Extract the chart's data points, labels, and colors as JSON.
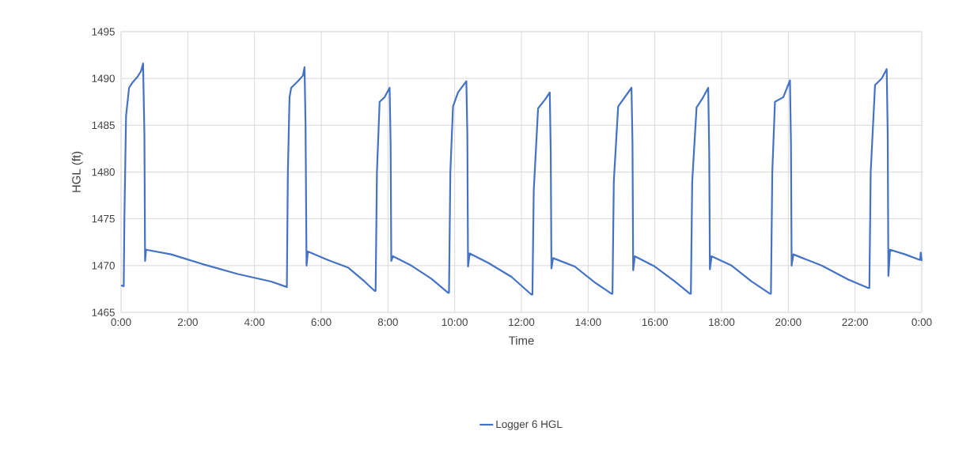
{
  "chart_data": {
    "type": "line",
    "xlabel": "Time",
    "ylabel": "HGL (ft)",
    "xlim": [
      0,
      24
    ],
    "ylim": [
      1465,
      1495
    ],
    "xticks": [
      {
        "value": 0,
        "label": "0:00"
      },
      {
        "value": 2,
        "label": "2:00"
      },
      {
        "value": 4,
        "label": "4:00"
      },
      {
        "value": 6,
        "label": "6:00"
      },
      {
        "value": 8,
        "label": "8:00"
      },
      {
        "value": 10,
        "label": "10:00"
      },
      {
        "value": 12,
        "label": "12:00"
      },
      {
        "value": 14,
        "label": "14:00"
      },
      {
        "value": 16,
        "label": "16:00"
      },
      {
        "value": 18,
        "label": "18:00"
      },
      {
        "value": 20,
        "label": "20:00"
      },
      {
        "value": 22,
        "label": "22:00"
      },
      {
        "value": 24,
        "label": "0:00"
      }
    ],
    "yticks": [
      1465,
      1470,
      1475,
      1480,
      1485,
      1490,
      1495
    ],
    "grid": true,
    "legend": "bottom",
    "marker": "none",
    "line_style": "solid",
    "series": [
      {
        "name": "Logger 6 HGL",
        "color": "#4472c4",
        "x": [
          0,
          0.08,
          0.1,
          0.15,
          0.24,
          0.35,
          0.5,
          0.6,
          0.66,
          0.7,
          0.72,
          0.75,
          1.5,
          2.5,
          3.5,
          4.5,
          4.9,
          4.97,
          5.0,
          5.05,
          5.1,
          5.3,
          5.45,
          5.5,
          5.53,
          5.56,
          5.6,
          6.2,
          6.8,
          7.3,
          7.6,
          7.63,
          7.67,
          7.75,
          7.9,
          8.05,
          8.08,
          8.1,
          8.15,
          8.7,
          9.3,
          9.8,
          9.83,
          9.87,
          9.95,
          10.1,
          10.35,
          10.38,
          10.4,
          10.45,
          11.0,
          11.7,
          12.3,
          12.33,
          12.37,
          12.5,
          12.7,
          12.85,
          12.88,
          12.9,
          12.95,
          13.6,
          14.2,
          14.7,
          14.73,
          14.77,
          14.9,
          15.1,
          15.3,
          15.33,
          15.35,
          15.4,
          16.0,
          16.6,
          17.05,
          17.08,
          17.12,
          17.25,
          17.45,
          17.6,
          17.63,
          17.65,
          17.7,
          18.3,
          18.9,
          19.45,
          19.48,
          19.52,
          19.6,
          19.85,
          20.05,
          20.08,
          20.1,
          20.15,
          21.0,
          21.8,
          22.4,
          22.43,
          22.47,
          22.6,
          22.8,
          22.95,
          22.98,
          23.0,
          23.05,
          23.5,
          23.95,
          23.97,
          24
        ],
        "values": [
          1467.9,
          1467.8,
          1475,
          1486,
          1489,
          1489.6,
          1490.2,
          1490.8,
          1491.6,
          1484,
          1470.5,
          1471.7,
          1471.2,
          1470.1,
          1469.1,
          1468.3,
          1467.8,
          1467.7,
          1480,
          1488,
          1489,
          1489.7,
          1490.3,
          1491.2,
          1485,
          1470,
          1471.5,
          1470.6,
          1469.8,
          1468.3,
          1467.3,
          1467.3,
          1480,
          1487.5,
          1488,
          1489,
          1483,
          1470.5,
          1471,
          1470,
          1468.6,
          1467.1,
          1467.1,
          1480,
          1487,
          1488.5,
          1489.7,
          1484,
          1469.9,
          1471.3,
          1470.3,
          1468.8,
          1466.9,
          1466.9,
          1478,
          1486.8,
          1487.7,
          1488.5,
          1482,
          1469.7,
          1470.8,
          1469.9,
          1468.2,
          1467,
          1467,
          1479,
          1487,
          1488,
          1489,
          1483,
          1469.5,
          1471,
          1469.9,
          1468.3,
          1467,
          1467,
          1479,
          1486.9,
          1488,
          1489,
          1482,
          1469.6,
          1471,
          1470,
          1468.3,
          1467,
          1467,
          1480,
          1487.5,
          1488,
          1489.8,
          1483,
          1470,
          1471.2,
          1470,
          1468.5,
          1467.6,
          1467.6,
          1480,
          1489.3,
          1490,
          1491,
          1484,
          1468.9,
          1471.7,
          1471.2,
          1470.6,
          1471.4,
          1470.5
        ]
      }
    ]
  }
}
